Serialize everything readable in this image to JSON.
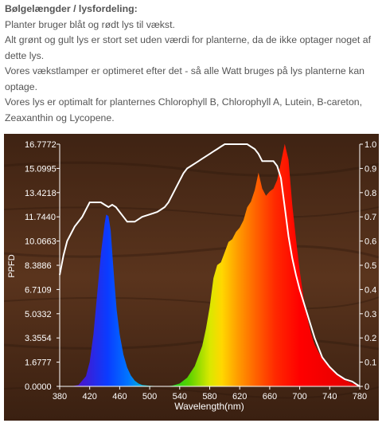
{
  "article": {
    "heading": "Bølgelængder / lysfordeling:",
    "paragraphs": [
      "Planter bruger blåt og rødt lys til vækst.",
      "Alt grønt og gult lys er stort set uden værdi for planterne, da de ikke optager noget af dette lys.",
      "Vores vækstlamper er optimeret efter det - så alle Watt bruges på lys planterne kan optage.",
      "Vores lys er optimalt for planternes Chlorophyll B, Chlorophyll A, Lutein, B-careton, Zeaxanthin og Lycopene."
    ]
  },
  "colors": {
    "wood_background": "#4a2a18",
    "axis_text": "#ffffff",
    "absorption_line": "#ffffff"
  },
  "chart_data": {
    "type": "area",
    "title": "",
    "xlabel": "Wavelength(nm)",
    "ylabel": "PPFD",
    "xlim": [
      380,
      780
    ],
    "ylim": [
      0,
      16.7772
    ],
    "y2lim": [
      0,
      1.0
    ],
    "x_ticks": [
      "380",
      "420",
      "460",
      "500",
      "540",
      "580",
      "620",
      "660",
      "700",
      "740",
      "780"
    ],
    "y_ticks": [
      "0.0000",
      "1.6777",
      "3.3554",
      "5.0332",
      "6.7109",
      "8.3886",
      "10.0663",
      "11.7440",
      "13.4218",
      "15.0995",
      "16.7772"
    ],
    "y2_ticks": [
      "0",
      "0.1",
      "0.2",
      "0.3",
      "0.4",
      "0.5",
      "0.6",
      "0.7",
      "0.8",
      "0.9",
      "1.0"
    ],
    "grid": false,
    "series": [
      {
        "kind": "area",
        "x": [
          395,
          405,
          415,
          420,
          425,
          430,
          435,
          440,
          442,
          445,
          448,
          450,
          453,
          456,
          460,
          465,
          470,
          475,
          480,
          485,
          490,
          500,
          510,
          520
        ],
        "y": [
          0,
          0.1,
          0.7,
          1.7,
          3.6,
          6.4,
          9.2,
          11.3,
          11.9,
          11.8,
          10.8,
          9.3,
          7.2,
          5.3,
          3.6,
          2.2,
          1.3,
          0.75,
          0.4,
          0.2,
          0.1,
          0.04,
          0.02,
          0
        ]
      },
      {
        "kind": "area",
        "x": [
          520,
          530,
          540,
          550,
          560,
          570,
          575,
          580,
          585,
          590,
          595,
          600,
          605,
          610,
          615,
          620,
          625,
          630,
          635,
          640,
          645,
          650,
          655,
          660,
          665,
          670,
          675,
          680,
          685,
          690,
          695,
          700,
          705,
          710,
          715,
          720,
          730,
          740,
          750,
          760,
          770,
          780
        ],
        "y": [
          0,
          0.05,
          0.2,
          0.6,
          1.4,
          2.8,
          4.0,
          5.5,
          7.5,
          8.4,
          8.6,
          9.3,
          10.0,
          10.2,
          10.7,
          11.0,
          11.5,
          12.4,
          12.8,
          13.6,
          14.8,
          13.7,
          13.2,
          13.5,
          13.7,
          14.3,
          15.5,
          16.8,
          15.7,
          12.6,
          10.2,
          8.0,
          6.2,
          4.8,
          3.7,
          2.9,
          1.9,
          1.3,
          0.8,
          0.45,
          0.2,
          0.05
        ]
      },
      {
        "kind": "line",
        "axis": "y2",
        "x": [
          380,
          385,
          390,
          395,
          400,
          405,
          410,
          420,
          425,
          430,
          435,
          440,
          445,
          450,
          455,
          460,
          465,
          470,
          475,
          480,
          490,
          500,
          510,
          515,
          520,
          525,
          530,
          535,
          540,
          545,
          550,
          555,
          560,
          565,
          570,
          575,
          580,
          585,
          590,
          595,
          600,
          610,
          620,
          630,
          640,
          645,
          650,
          655,
          660,
          665,
          670,
          675,
          680,
          685,
          690,
          695,
          700,
          705,
          710,
          715,
          720,
          725,
          730,
          740,
          750,
          760,
          770,
          775,
          780
        ],
        "y": [
          0.46,
          0.54,
          0.6,
          0.63,
          0.66,
          0.68,
          0.7,
          0.76,
          0.76,
          0.76,
          0.76,
          0.75,
          0.74,
          0.75,
          0.74,
          0.72,
          0.7,
          0.68,
          0.68,
          0.68,
          0.7,
          0.71,
          0.72,
          0.73,
          0.74,
          0.76,
          0.79,
          0.82,
          0.85,
          0.88,
          0.9,
          0.91,
          0.92,
          0.93,
          0.94,
          0.95,
          0.96,
          0.97,
          0.98,
          0.99,
          1.0,
          1.0,
          1.0,
          1.0,
          0.98,
          0.96,
          0.93,
          0.93,
          0.93,
          0.93,
          0.91,
          0.86,
          0.74,
          0.62,
          0.53,
          0.46,
          0.4,
          0.35,
          0.3,
          0.25,
          0.2,
          0.16,
          0.12,
          0.08,
          0.05,
          0.03,
          0.02,
          0.01,
          0
        ]
      }
    ]
  }
}
